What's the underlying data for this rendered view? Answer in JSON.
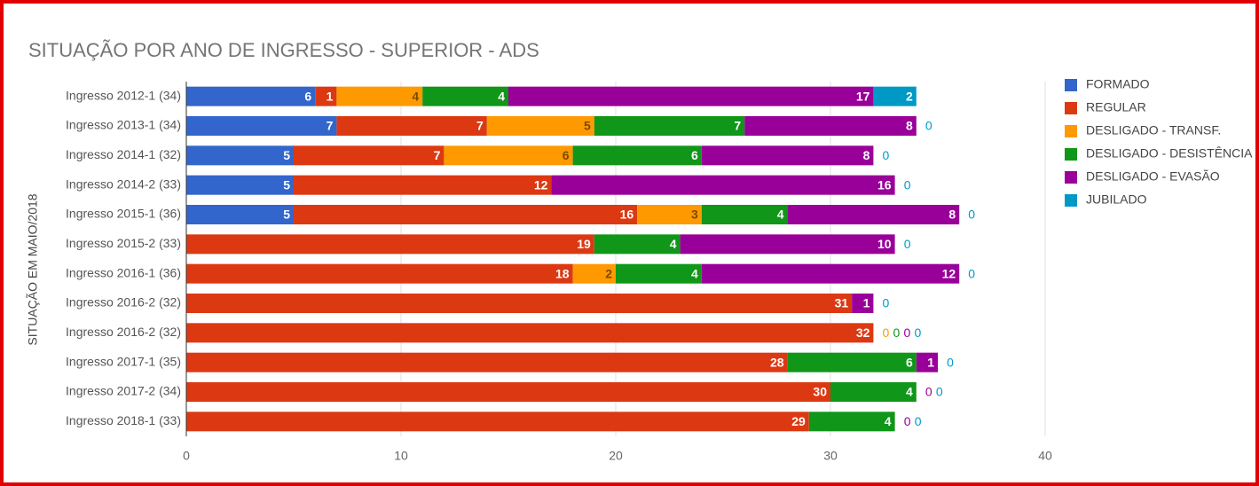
{
  "chart_data": {
    "type": "stacked-bar-horizontal",
    "title": "SITUAÇÃO POR ANO DE INGRESSO - SUPERIOR - ADS",
    "y_label": "SITUAÇÃO EM MAIO/2018",
    "categories": [
      "Ingresso 2012-1 (34)",
      "Ingresso 2013-1 (34)",
      "Ingresso 2014-1 (32)",
      "Ingresso 2014-2 (33)",
      "Ingresso 2015-1 (36)",
      "Ingresso 2015-2 (33)",
      "Ingresso 2016-1 (36)",
      "Ingresso 2016-2 (32)",
      "Ingresso 2016-2 (32)",
      "Ingresso 2017-1 (35)",
      "Ingresso 2017-2 (34)",
      "Ingresso 2018-1 (33)"
    ],
    "series": [
      {
        "name": "FORMADO",
        "color": "#3366cc",
        "values": [
          6,
          7,
          5,
          5,
          5,
          0,
          0,
          0,
          0,
          0,
          0,
          0
        ]
      },
      {
        "name": "REGULAR",
        "color": "#dc3912",
        "values": [
          1,
          7,
          7,
          12,
          16,
          19,
          18,
          31,
          32,
          28,
          30,
          29
        ]
      },
      {
        "name": "DESLIGADO - TRANSF.",
        "color": "#ff9900",
        "values": [
          4,
          5,
          6,
          0,
          3,
          0,
          2,
          0,
          0,
          0,
          0,
          0
        ]
      },
      {
        "name": "DESLIGADO - DESISTÊNCIA",
        "color": "#109618",
        "values": [
          4,
          7,
          6,
          0,
          4,
          4,
          4,
          0,
          0,
          6,
          4,
          4
        ]
      },
      {
        "name": "DESLIGADO - EVASÃO",
        "color": "#990099",
        "values": [
          17,
          8,
          8,
          16,
          8,
          10,
          12,
          1,
          0,
          1,
          0,
          0
        ]
      },
      {
        "name": "JUBILADO",
        "color": "#0099c6",
        "values": [
          2,
          0,
          0,
          0,
          0,
          0,
          0,
          0,
          0,
          0,
          0,
          0
        ]
      }
    ],
    "xlim": [
      0,
      40
    ],
    "xticks": [
      0,
      10,
      20,
      30,
      40
    ],
    "grid": true,
    "legend": "right"
  }
}
